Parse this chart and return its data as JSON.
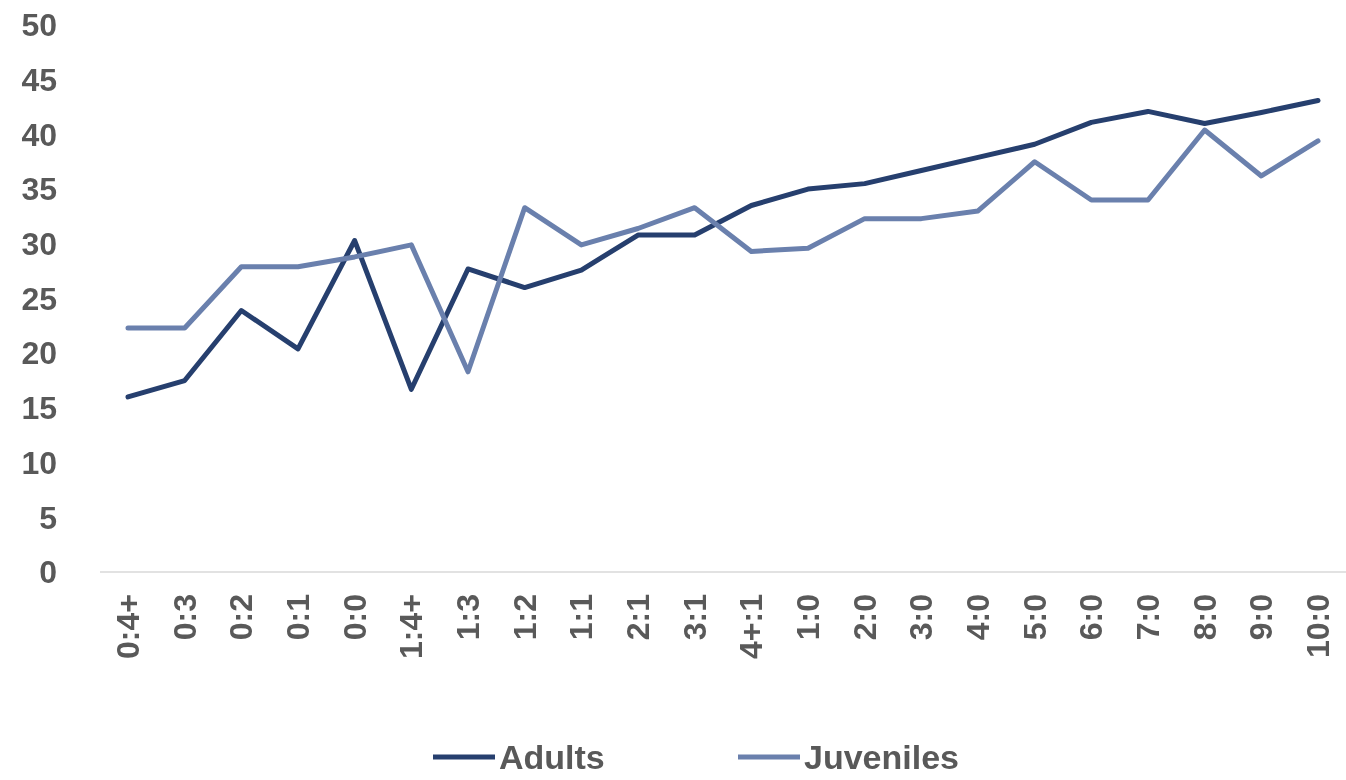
{
  "chart_data": {
    "type": "line",
    "categories": [
      "0:4+",
      "0:3",
      "0:2",
      "0:1",
      "0:0",
      "1:4+",
      "1:3",
      "1:2",
      "1:1",
      "2:1",
      "3:1",
      "4+:1",
      "1:0",
      "2:0",
      "3:0",
      "4:0",
      "5:0",
      "6:0",
      "7:0",
      "8:0",
      "9:0",
      "10:0"
    ],
    "series": [
      {
        "name": "Adults",
        "color": "#263f6e",
        "values": [
          16.0,
          17.5,
          23.9,
          20.4,
          30.3,
          16.7,
          27.7,
          26.0,
          27.6,
          30.8,
          30.8,
          33.5,
          35.0,
          35.5,
          36.7,
          37.9,
          39.1,
          41.1,
          42.1,
          41.0,
          42.0,
          43.1
        ]
      },
      {
        "name": "Juveniles",
        "color": "#6a80ad",
        "values": [
          22.3,
          22.3,
          27.9,
          27.9,
          28.8,
          29.9,
          18.3,
          33.3,
          29.9,
          31.4,
          33.3,
          29.3,
          29.6,
          32.3,
          32.3,
          33.0,
          37.5,
          34.0,
          34.0,
          40.4,
          36.2,
          39.4
        ]
      }
    ],
    "ylim": [
      0,
      50
    ],
    "yticks": [
      0,
      5,
      10,
      15,
      20,
      25,
      30,
      35,
      40,
      45,
      50
    ],
    "grid": false,
    "legend": "bottom",
    "marker": "none",
    "line_style": "solid"
  }
}
